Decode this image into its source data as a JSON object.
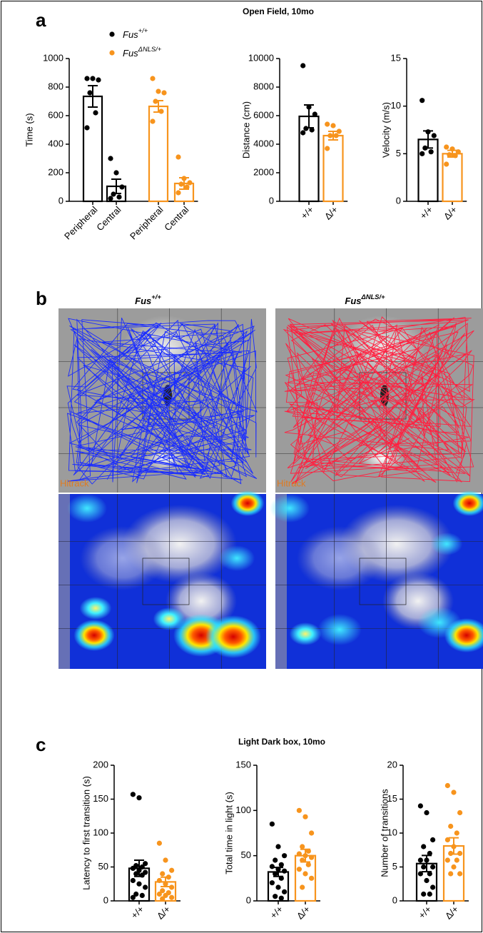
{
  "panels": [
    {
      "label": "a",
      "title": "Open Field, 10mo"
    },
    {
      "label": "b",
      "images": [
        {
          "title": "Fus",
          "title_sup": "+/+",
          "watermark": "Hitrack"
        },
        {
          "title": "Fus",
          "title_sup": "ΔNLS/+",
          "watermark": "Hitrack"
        }
      ]
    },
    {
      "label": "c",
      "title": "Light Dark box, 10mo"
    }
  ],
  "chart_data": [
    {
      "type": "bar",
      "ylabel": "Time (s)",
      "categories": [
        "Peripheral",
        "Central",
        "Peripheral",
        "Central"
      ],
      "series": [
        {
          "name": "Fus",
          "name_sup": "+/+",
          "color": "#000000",
          "values": [
            735,
            105,
            null,
            null
          ],
          "errors": [
            75,
            50,
            null,
            null
          ],
          "points": [
            [
              860,
              860,
              850,
              760,
              620,
              515
            ],
            [
              300,
              200,
              100,
              50,
              30,
              20
            ],
            null,
            null
          ]
        },
        {
          "name": "Fus",
          "name_sup": "ΔNLS/+",
          "color": "#f7941d",
          "values": [
            null,
            null,
            665,
            125
          ],
          "errors": [
            null,
            null,
            40,
            40
          ],
          "points": [
            null,
            null,
            [
              860,
              770,
              760,
              700,
              630,
              560
            ],
            [
              310,
              160,
              130,
              120,
              100,
              60
            ]
          ]
        }
      ],
      "ylim": [
        0,
        1000
      ],
      "yticks": [
        0,
        200,
        400,
        600,
        800,
        1000
      ]
    },
    {
      "type": "bar",
      "ylabel": "Distance (cm)",
      "categories": [
        "+/+",
        "Δ/+"
      ],
      "colors": [
        "#000000",
        "#f7941d"
      ],
      "values": [
        5950,
        4600
      ],
      "errors": [
        800,
        300
      ],
      "points": [
        [
          9500,
          6600,
          6100,
          5100,
          5000,
          4800
        ],
        [
          5400,
          5300,
          4900,
          4600,
          4600,
          3700
        ]
      ],
      "ylim": [
        0,
        10000
      ],
      "yticks": [
        0,
        2000,
        4000,
        6000,
        8000,
        10000
      ]
    },
    {
      "type": "bar",
      "ylabel": "Velocity (m/s)",
      "categories": [
        "+/+",
        "Δ/+"
      ],
      "colors": [
        "#000000",
        "#f7941d"
      ],
      "values": [
        6.5,
        5.0
      ],
      "errors": [
        0.9,
        0.35
      ],
      "points": [
        [
          10.6,
          7.3,
          6.9,
          5.6,
          5.2,
          5.0
        ],
        [
          5.7,
          5.5,
          5.2,
          4.9,
          4.8,
          3.9
        ]
      ],
      "ylim": [
        0,
        15
      ],
      "yticks": [
        0,
        5,
        10,
        15
      ]
    },
    {
      "type": "bar",
      "ylabel": "Latency to first transition  (s)",
      "categories": [
        "+/+",
        "Δ/+"
      ],
      "colors": [
        "#000000",
        "#f7941d"
      ],
      "values": [
        48,
        28
      ],
      "errors": [
        12,
        7
      ],
      "points": [
        [
          157,
          152,
          55,
          52,
          50,
          48,
          45,
          42,
          40,
          38,
          30,
          25,
          20,
          10,
          8,
          5
        ],
        [
          85,
          60,
          45,
          40,
          35,
          30,
          25,
          20,
          15,
          12,
          10,
          8,
          5,
          3
        ]
      ],
      "ylim": [
        0,
        200
      ],
      "yticks": [
        0,
        50,
        100,
        150,
        200
      ]
    },
    {
      "type": "bar",
      "ylabel": "Total time in light (s)",
      "categories": [
        "+/+",
        "Δ/+"
      ],
      "colors": [
        "#000000",
        "#f7941d"
      ],
      "values": [
        32,
        50
      ],
      "errors": [
        5,
        7
      ],
      "points": [
        [
          85,
          60,
          50,
          45,
          40,
          38,
          35,
          33,
          30,
          25,
          20,
          15,
          10,
          5,
          3
        ],
        [
          100,
          93,
          75,
          60,
          55,
          52,
          50,
          48,
          45,
          40,
          35,
          30,
          25,
          15
        ]
      ],
      "ylim": [
        0,
        150
      ],
      "yticks": [
        0,
        50,
        100,
        150
      ]
    },
    {
      "type": "bar",
      "ylabel": "Number of transitions",
      "categories": [
        "+/+",
        "Δ/+"
      ],
      "colors": [
        "#000000",
        "#f7941d"
      ],
      "values": [
        5.5,
        8.1
      ],
      "errors": [
        1.2,
        1.2
      ],
      "points": [
        [
          14,
          13,
          9,
          8,
          7,
          6,
          6,
          5,
          5,
          4,
          4,
          3,
          2,
          1,
          1
        ],
        [
          17,
          16,
          13,
          11,
          10,
          9,
          8,
          7,
          7,
          6,
          6,
          5,
          4,
          4
        ]
      ],
      "ylim": [
        0,
        20
      ],
      "yticks": [
        0,
        5,
        10,
        15,
        20
      ]
    }
  ]
}
